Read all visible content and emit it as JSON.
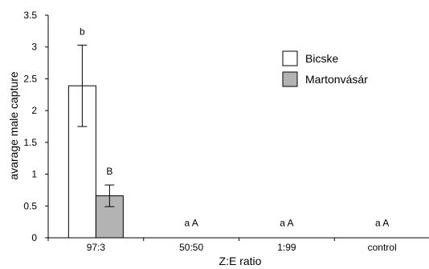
{
  "chart_data": {
    "type": "bar",
    "xlabel": "Z:E ratio",
    "ylabel": "avarage male capture",
    "ylim": [
      0,
      3.5
    ],
    "yticks": [
      "0",
      "0.5",
      "1",
      "1.5",
      "2",
      "2.5",
      "3",
      "3.5"
    ],
    "categories": [
      "97:3",
      "50:50",
      "1:99",
      "control"
    ],
    "series": [
      {
        "name": "Bicske",
        "color": "#ffffff",
        "values": [
          2.39,
          0,
          0,
          0
        ],
        "error": [
          0.64,
          0,
          0,
          0
        ]
      },
      {
        "name": "Martonvásár",
        "color": "#b3b3b3",
        "values": [
          0.66,
          0,
          0,
          0
        ],
        "error": [
          0.17,
          0,
          0,
          0
        ]
      }
    ],
    "annotations": [
      {
        "category": 0,
        "series": 0,
        "text": "b"
      },
      {
        "category": 0,
        "series": 1,
        "text": "B"
      },
      {
        "category": 1,
        "text": "a A"
      },
      {
        "category": 2,
        "text": "a A"
      },
      {
        "category": 3,
        "text": "a A"
      }
    ],
    "legend_position": "top-right",
    "grid": false
  }
}
